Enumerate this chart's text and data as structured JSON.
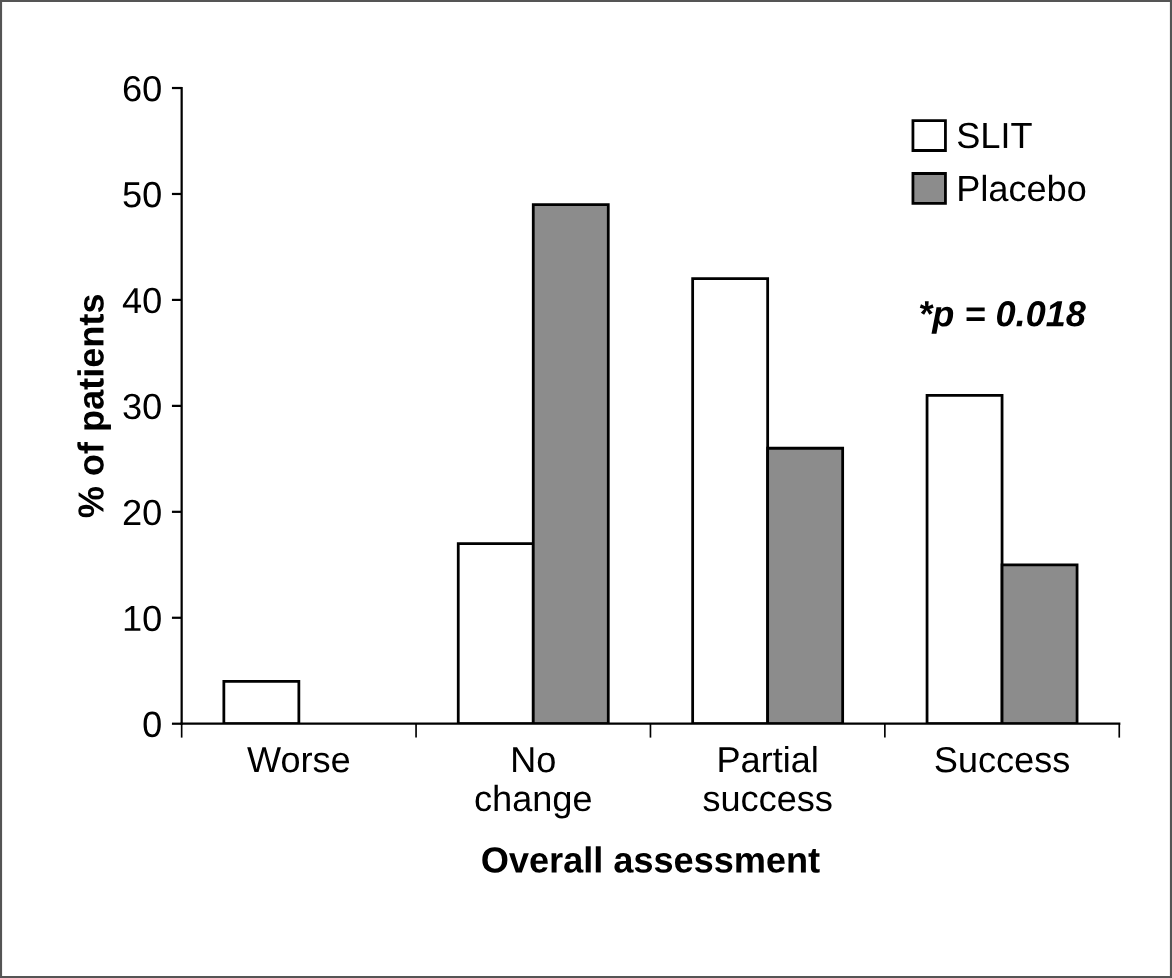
{
  "chart_data": {
    "type": "bar",
    "xlabel": "Overall assessment",
    "ylabel": "% of patients",
    "categories": [
      "Worse",
      "No\nchange",
      "Partial\nsuccess",
      "Success"
    ],
    "series": [
      {
        "name": "SLIT",
        "color": "#ffffff",
        "values": [
          4,
          17,
          42,
          31
        ]
      },
      {
        "name": "Placebo",
        "color": "#8c8c8c",
        "values": [
          null,
          49,
          26,
          15
        ]
      }
    ],
    "ylim": [
      0,
      60
    ],
    "yticks": [
      0,
      10,
      20,
      30,
      40,
      50,
      60
    ],
    "grid": false,
    "legend": "top right",
    "annotations": [
      "*p = 0.018"
    ]
  }
}
